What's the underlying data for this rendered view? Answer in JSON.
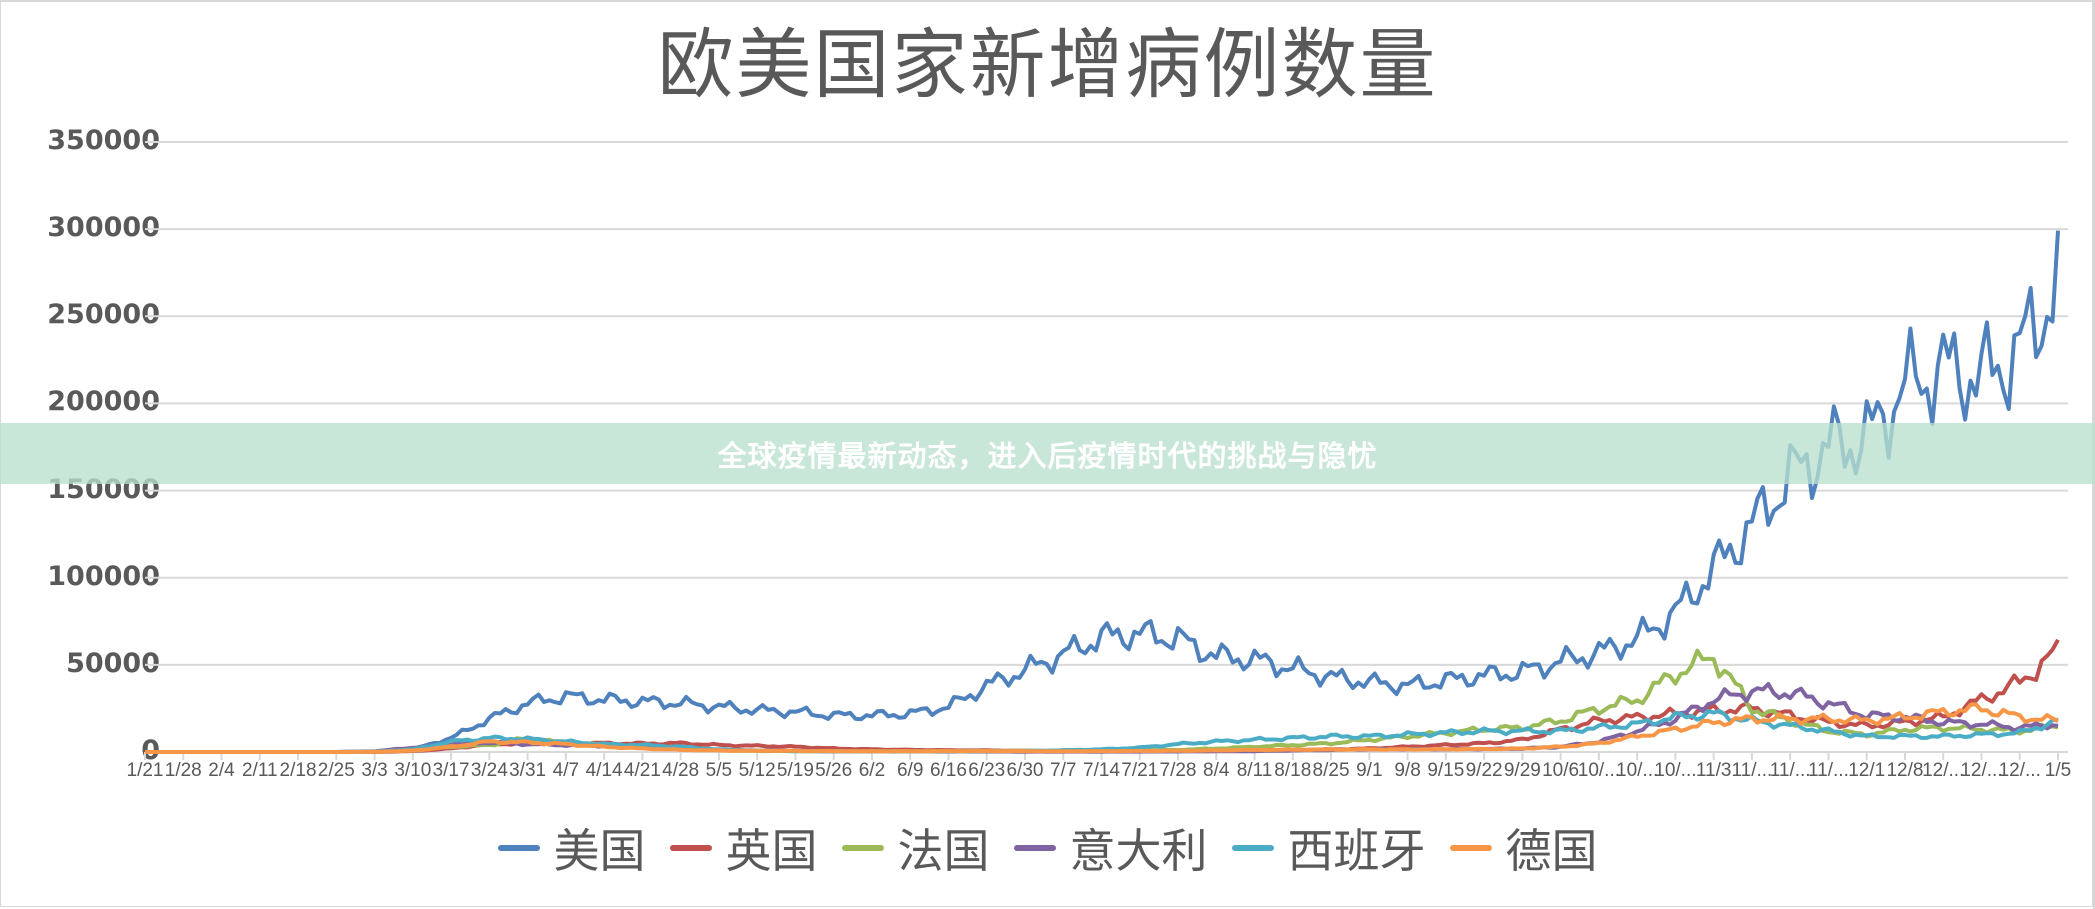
{
  "page": {
    "banner_text": "全球疫情最新动态，进入后疫情时代的挑战与隐忧"
  },
  "chart_data": {
    "type": "line",
    "title": "欧美国家新增病例数量",
    "xlabel": "",
    "ylabel": "",
    "ylim": [
      0,
      350000
    ],
    "yticks": [
      0,
      50000,
      100000,
      150000,
      200000,
      250000,
      300000,
      350000
    ],
    "ytick_labels": [
      "0",
      "50000",
      "100000",
      "150000",
      "200000",
      "250000",
      "300000",
      "350000"
    ],
    "grid": true,
    "legend_position": "bottom",
    "x_tick_labels": [
      "1/21",
      "1/28",
      "2/4",
      "2/11",
      "2/18",
      "2/25",
      "3/3",
      "3/10",
      "3/17",
      "3/24",
      "3/31",
      "4/7",
      "4/14",
      "4/21",
      "4/28",
      "5/5",
      "5/12",
      "5/19",
      "5/26",
      "6/2",
      "6/9",
      "6/16",
      "6/23",
      "6/30",
      "7/7",
      "7/14",
      "7/21",
      "7/28",
      "8/4",
      "8/11",
      "8/18",
      "8/25",
      "9/1",
      "9/8",
      "9/15",
      "9/22",
      "9/29",
      "10/6",
      "10/...",
      "10/...",
      "10/...",
      "11/3",
      "11/...",
      "11/...",
      "11/...",
      "12/1",
      "12/8",
      "12/...",
      "12/...",
      "12/...",
      "1/5"
    ],
    "x_tick_labels_weekly_count": 51,
    "series": [
      {
        "name": "美国",
        "color": "#4f81bd",
        "weekly_values": [
          0,
          0,
          0,
          0,
          0,
          0,
          100,
          1500,
          8000,
          19000,
          28000,
          32000,
          30000,
          29000,
          28000,
          26000,
          24000,
          23000,
          21000,
          21000,
          22000,
          26000,
          38000,
          47000,
          56000,
          66000,
          68000,
          65000,
          55000,
          53000,
          48000,
          43000,
          40000,
          38000,
          41000,
          44000,
          46000,
          52000,
          57000,
          65000,
          80000,
          105000,
          130000,
          158000,
          175000,
          180000,
          210000,
          220000,
          215000,
          230000,
          270000
        ]
      },
      {
        "name": "英国",
        "color": "#c0504d",
        "weekly_values": [
          0,
          0,
          0,
          0,
          0,
          0,
          0,
          500,
          2000,
          4500,
          5000,
          5000,
          5000,
          4800,
          5000,
          4000,
          3500,
          3000,
          2000,
          1500,
          1200,
          1000,
          900,
          700,
          600,
          700,
          800,
          800,
          900,
          1100,
          1200,
          1500,
          2000,
          3000,
          4000,
          5000,
          7000,
          13000,
          18000,
          20000,
          22000,
          24000,
          25000,
          21000,
          17000,
          15000,
          17000,
          20000,
          30000,
          40000,
          58000
        ]
      },
      {
        "name": "法国",
        "color": "#9bbb59",
        "weekly_values": [
          0,
          0,
          0,
          0,
          0,
          0,
          100,
          800,
          3000,
          4000,
          8000,
          5000,
          4000,
          3000,
          2000,
          1000,
          600,
          500,
          400,
          400,
          500,
          500,
          600,
          700,
          600,
          600,
          900,
          1200,
          2000,
          3000,
          4000,
          5000,
          7000,
          9000,
          11000,
          13000,
          14000,
          18000,
          25000,
          30000,
          45000,
          55000,
          25000,
          18000,
          12000,
          10000,
          13000,
          14000,
          13000,
          12000,
          15000
        ]
      },
      {
        "name": "意大利",
        "color": "#8064a2",
        "weekly_values": [
          0,
          0,
          0,
          0,
          0,
          0,
          400,
          2500,
          4500,
          5500,
          4500,
          4000,
          3500,
          3000,
          2000,
          1200,
          900,
          600,
          400,
          300,
          300,
          250,
          250,
          200,
          200,
          200,
          250,
          300,
          400,
          500,
          900,
          1200,
          1500,
          1600,
          1600,
          1700,
          2000,
          3000,
          6000,
          12000,
          19000,
          30000,
          35000,
          34000,
          28000,
          21000,
          20000,
          17000,
          16000,
          14000,
          16000
        ]
      },
      {
        "name": "西班牙",
        "color": "#4bacc6",
        "weekly_values": [
          0,
          0,
          0,
          0,
          0,
          0,
          200,
          1500,
          6000,
          8000,
          7500,
          6000,
          4500,
          4000,
          3000,
          1500,
          800,
          500,
          400,
          300,
          300,
          300,
          400,
          600,
          1000,
          1500,
          2500,
          4500,
          6000,
          7000,
          8000,
          9000,
          9000,
          10000,
          11000,
          12000,
          12000,
          12000,
          14000,
          16000,
          20000,
          22000,
          18000,
          15000,
          12000,
          9000,
          9000,
          9000,
          10000,
          11000,
          18000
        ]
      },
      {
        "name": "德国",
        "color": "#f79646",
        "weekly_values": [
          0,
          0,
          0,
          0,
          0,
          0,
          100,
          800,
          3000,
          6000,
          5500,
          4500,
          3000,
          2000,
          1200,
          900,
          700,
          600,
          500,
          400,
          400,
          500,
          500,
          500,
          400,
          500,
          600,
          700,
          900,
          1200,
          1300,
          1400,
          1500,
          1500,
          1600,
          1700,
          2000,
          3000,
          5000,
          9000,
          13000,
          17000,
          19000,
          19000,
          19000,
          18000,
          20000,
          23000,
          25000,
          20000,
          18000
        ]
      }
    ]
  }
}
